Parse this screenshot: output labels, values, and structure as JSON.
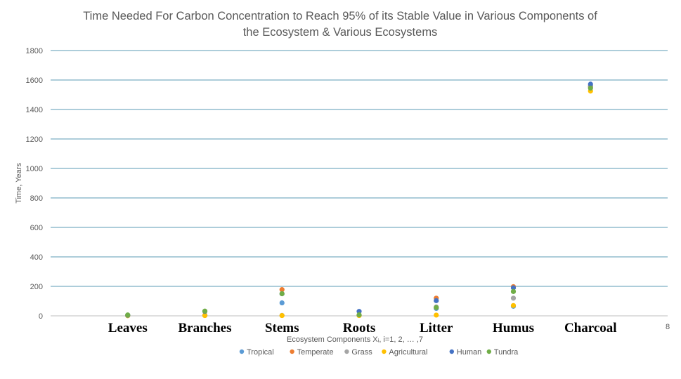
{
  "chart_data": {
    "type": "scatter",
    "title_line1": "Time Needed For Carbon Concentration to Reach 95% of its Stable Value in Various Components of",
    "title_line2": "the Ecosystem & Various Ecosystems",
    "xlabel": "Ecosystem Components  Xᵢ, i=1, 2, … ,7",
    "ylabel": "Time, Years",
    "ylim": [
      0,
      1800
    ],
    "yticks": [
      0,
      200,
      400,
      600,
      800,
      1000,
      1200,
      1400,
      1600,
      1800
    ],
    "xlim": [
      0,
      8
    ],
    "x_end_tick": "8",
    "categories": [
      "Leaves",
      "Branches",
      "Stems",
      "Roots",
      "Litter",
      "Humus",
      "Charcoal"
    ],
    "grid": true,
    "legend_position": "bottom",
    "series": [
      {
        "name": "Tropical",
        "color": "#5B9BD5",
        "x": [
          1,
          2,
          3,
          4,
          5,
          6,
          7
        ],
        "values": [
          2,
          3,
          88,
          3,
          50,
          65,
          1560
        ]
      },
      {
        "name": "Temperate",
        "color": "#ED7D31",
        "x": [
          1,
          2,
          3,
          4,
          5,
          6,
          7
        ],
        "values": [
          3,
          4,
          178,
          4,
          120,
          198,
          1555
        ]
      },
      {
        "name": "Grass",
        "color": "#A5A5A5",
        "x": [
          1,
          2,
          3,
          4,
          5,
          6,
          7
        ],
        "values": [
          2,
          3,
          3,
          3,
          60,
          120,
          1550
        ]
      },
      {
        "name": "Agricultural",
        "color": "#FFC000",
        "x": [
          1,
          2,
          3,
          4,
          5,
          6,
          7
        ],
        "values": [
          1,
          2,
          2,
          2,
          5,
          70,
          1525
        ]
      },
      {
        "name": "Human",
        "color": "#4472C4",
        "x": [
          1,
          2,
          3,
          4,
          5,
          6,
          7
        ],
        "values": [
          4,
          30,
          150,
          30,
          103,
          190,
          1572
        ]
      },
      {
        "name": "Tundra",
        "color": "#70AD47",
        "x": [
          1,
          2,
          3,
          4,
          5,
          6,
          7
        ],
        "values": [
          6,
          32,
          150,
          7,
          56,
          165,
          1545
        ]
      }
    ]
  }
}
